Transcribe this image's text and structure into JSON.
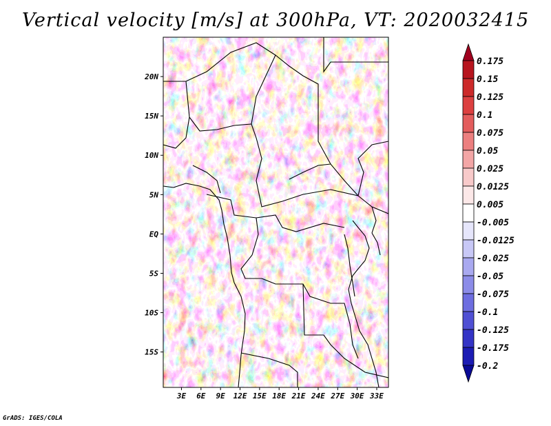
{
  "chart_data": {
    "type": "heatmap",
    "title": "Vertical velocity [m/s] at 300hPa, VT: 2020032415",
    "variable": "Vertical velocity",
    "units": "m/s",
    "level": "300hPa",
    "valid_time": "2020032415",
    "x_ticks": [
      "3E",
      "6E",
      "9E",
      "12E",
      "15E",
      "18E",
      "21E",
      "24E",
      "27E",
      "30E",
      "33E"
    ],
    "x_tick_values": [
      3,
      6,
      9,
      12,
      15,
      18,
      21,
      24,
      27,
      30,
      33
    ],
    "y_ticks": [
      "20N",
      "15N",
      "10N",
      "5N",
      "EQ",
      "5S",
      "10S",
      "15S"
    ],
    "y_tick_values": [
      20,
      15,
      10,
      5,
      0,
      -5,
      -10,
      -15
    ],
    "xlim": [
      0.2,
      34.8
    ],
    "ylim": [
      -19.5,
      25
    ],
    "colorbar_levels": [
      "0.175",
      "0.15",
      "0.125",
      "0.1",
      "0.075",
      "0.05",
      "0.025",
      "0.0125",
      "0.005",
      "-0.005",
      "-0.0125",
      "-0.025",
      "-0.05",
      "-0.075",
      "-0.1",
      "-0.125",
      "-0.175",
      "-0.2"
    ],
    "colorbar_colors": [
      "#a0001e",
      "#b7151e",
      "#cc2a2a",
      "#dc4040",
      "#e35d5d",
      "#ec7f7f",
      "#f3a6a6",
      "#f8caca",
      "#fce8e8",
      "#ffffff",
      "#e6e6fb",
      "#c8c8f6",
      "#a9a9f0",
      "#8c8ce8",
      "#6e6ee0",
      "#5050d4",
      "#3434c6",
      "#1c1cb4",
      "#0a0a96"
    ]
  },
  "credit": "GrADS: IGES/COLA"
}
